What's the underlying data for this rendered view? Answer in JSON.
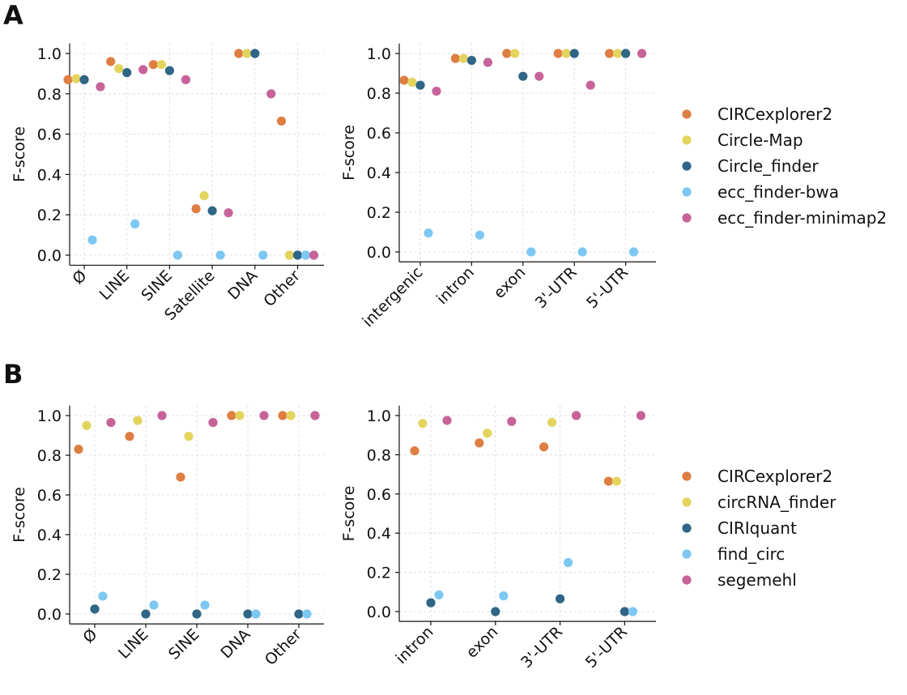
{
  "panels": {
    "A": "A",
    "B": "B"
  },
  "colors": {
    "CIRCexplorer2": "#de7e43",
    "Circle-Map": "#e3d45e",
    "Circle_finder": "#2f6585",
    "ecc_finder-bwa": "#7dc7f3",
    "ecc_finder-minimap2": "#c76399",
    "circRNA_finder": "#e3d45e",
    "CIRIquant": "#2f6585",
    "find_circ": "#7dc7f3",
    "segemehl": "#c76399"
  },
  "legends": {
    "A": [
      "CIRCexplorer2",
      "Circle-Map",
      "Circle_finder",
      "ecc_finder-bwa",
      "ecc_finder-minimap2"
    ],
    "B": [
      "CIRCexplorer2",
      "circRNA_finder",
      "CIRIquant",
      "find_circ",
      "segemehl"
    ]
  },
  "chart_data": [
    {
      "id": "A1",
      "type": "scatter",
      "ylabel": "F-score",
      "ylim": [
        -0.05,
        1.05
      ],
      "yticks": [
        "0.0",
        "0.2",
        "0.4",
        "0.6",
        "0.8",
        "1.0"
      ],
      "grid": true,
      "legend": "A",
      "categories": [
        "Ø",
        "LINE",
        "SINE",
        "Satellite",
        "DNA",
        "Other"
      ],
      "series": [
        {
          "name": "CIRCexplorer2",
          "values": [
            0.87,
            0.96,
            0.945,
            0.23,
            1.0,
            0.665
          ]
        },
        {
          "name": "Circle-Map",
          "values": [
            0.875,
            0.925,
            0.945,
            0.295,
            1.0,
            0.0
          ]
        },
        {
          "name": "Circle_finder",
          "values": [
            0.87,
            0.905,
            0.915,
            0.22,
            1.0,
            0.0
          ]
        },
        {
          "name": "ecc_finder-bwa",
          "values": [
            0.075,
            0.155,
            0.0,
            0.0,
            0.0,
            0.0
          ]
        },
        {
          "name": "ecc_finder-minimap2",
          "values": [
            0.835,
            0.92,
            0.87,
            0.21,
            0.8,
            0.0
          ]
        }
      ]
    },
    {
      "id": "A2",
      "type": "scatter",
      "ylabel": "F-score",
      "ylim": [
        -0.05,
        1.05
      ],
      "yticks": [
        "0.0",
        "0.2",
        "0.4",
        "0.6",
        "0.8",
        "1.0"
      ],
      "grid": true,
      "legend": "A",
      "categories": [
        "intergenic",
        "intron",
        "exon",
        "3'-UTR",
        "5'-UTR"
      ],
      "series": [
        {
          "name": "CIRCexplorer2",
          "values": [
            0.865,
            0.975,
            1.0,
            1.0,
            1.0
          ]
        },
        {
          "name": "Circle-Map",
          "values": [
            0.855,
            0.975,
            1.0,
            1.0,
            1.0
          ]
        },
        {
          "name": "Circle_finder",
          "values": [
            0.84,
            0.965,
            0.885,
            1.0,
            1.0
          ]
        },
        {
          "name": "ecc_finder-bwa",
          "values": [
            0.095,
            0.085,
            0.0,
            0.0,
            0.0
          ]
        },
        {
          "name": "ecc_finder-minimap2",
          "values": [
            0.81,
            0.955,
            0.885,
            0.84,
            1.0
          ]
        }
      ]
    },
    {
      "id": "B1",
      "type": "scatter",
      "ylabel": "F-score",
      "ylim": [
        -0.05,
        1.05
      ],
      "yticks": [
        "0.0",
        "0.2",
        "0.4",
        "0.6",
        "0.8",
        "1.0"
      ],
      "grid": true,
      "legend": "B",
      "categories": [
        "Ø",
        "LINE",
        "SINE",
        "DNA",
        "Other"
      ],
      "series": [
        {
          "name": "CIRCexplorer2",
          "values": [
            0.83,
            0.895,
            0.69,
            1.0,
            1.0
          ]
        },
        {
          "name": "circRNA_finder",
          "values": [
            0.95,
            0.975,
            0.895,
            1.0,
            1.0
          ]
        },
        {
          "name": "CIRIquant",
          "values": [
            0.025,
            0.0,
            0.0,
            0.0,
            0.0
          ]
        },
        {
          "name": "find_circ",
          "values": [
            0.09,
            0.045,
            0.045,
            0.0,
            0.0
          ]
        },
        {
          "name": "segemehl",
          "values": [
            0.965,
            1.0,
            0.965,
            1.0,
            1.0
          ]
        }
      ]
    },
    {
      "id": "B2",
      "type": "scatter",
      "ylabel": "F-score",
      "ylim": [
        -0.05,
        1.05
      ],
      "yticks": [
        "0.0",
        "0.2",
        "0.4",
        "0.6",
        "0.8",
        "1.0"
      ],
      "grid": true,
      "legend": "B",
      "categories": [
        "intron",
        "exon",
        "3'-UTR",
        "5'-UTR"
      ],
      "series": [
        {
          "name": "CIRCexplorer2",
          "values": [
            0.82,
            0.86,
            0.84,
            0.665
          ]
        },
        {
          "name": "circRNA_finder",
          "values": [
            0.96,
            0.91,
            0.965,
            0.665
          ]
        },
        {
          "name": "CIRIquant",
          "values": [
            0.045,
            0.0,
            0.065,
            0.0
          ]
        },
        {
          "name": "find_circ",
          "values": [
            0.085,
            0.08,
            0.25,
            0.0
          ]
        },
        {
          "name": "segemehl",
          "values": [
            0.975,
            0.97,
            1.0,
            1.0
          ]
        }
      ]
    }
  ]
}
